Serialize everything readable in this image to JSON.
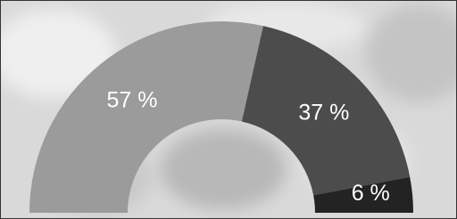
{
  "chart_data": {
    "type": "half-donut",
    "categories": [
      null,
      null,
      null
    ],
    "values": [
      57,
      37,
      6
    ],
    "value_labels": [
      "57 %",
      "37 %",
      "6 %"
    ],
    "colors": [
      "#9b9b9b",
      "#4c4c4c",
      "#232323"
    ]
  }
}
